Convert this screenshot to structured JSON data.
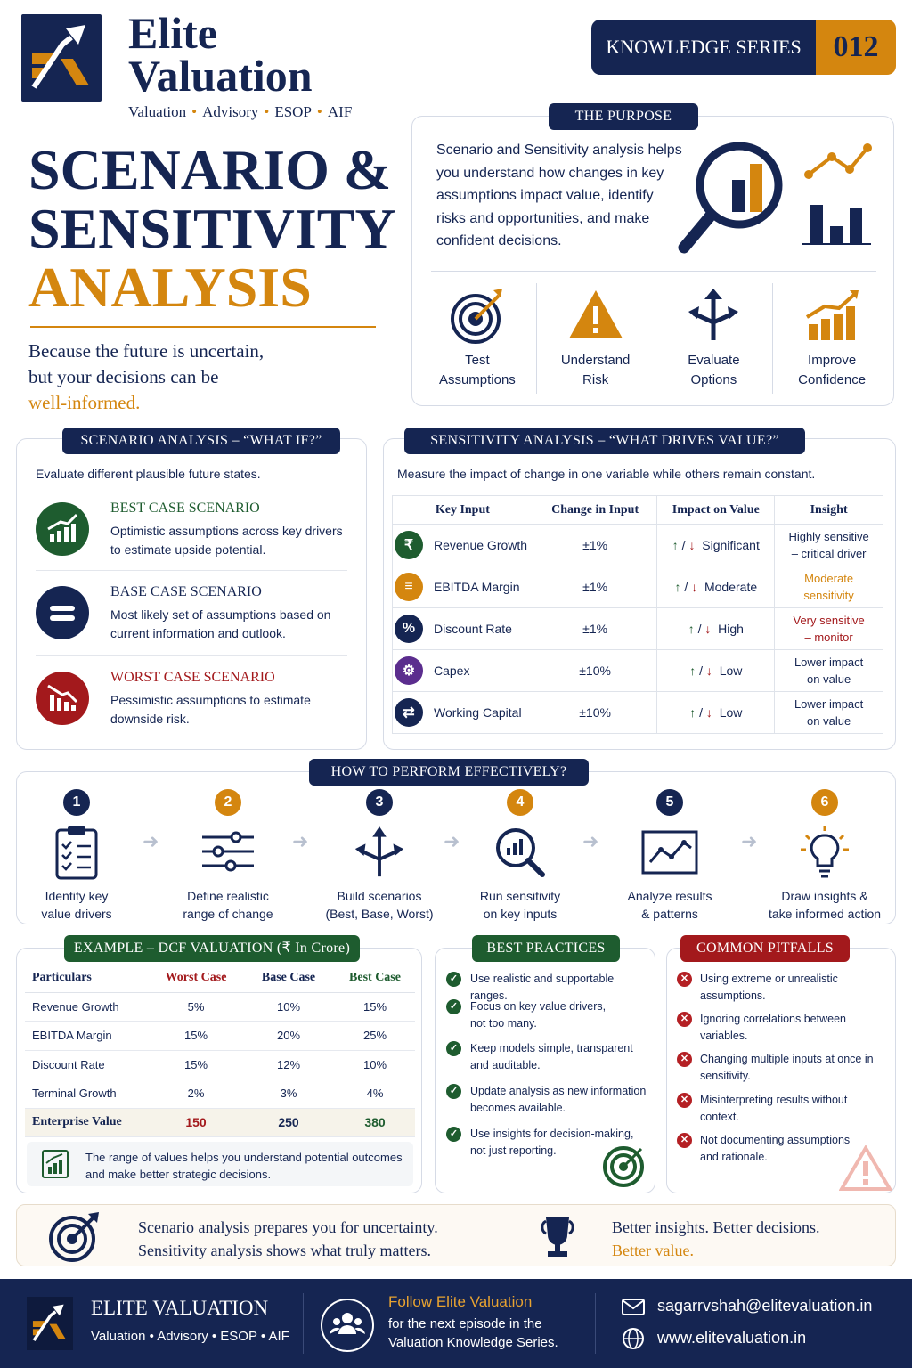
{
  "brand": {
    "name_line1": "Elite",
    "name_line2": "Valuation",
    "tagline_items": [
      "Valuation",
      "Advisory",
      "ESOP",
      "AIF"
    ]
  },
  "series": {
    "label": "KNOWLEDGE SERIES",
    "number": "012"
  },
  "title": {
    "line1": "SCENARIO &",
    "line2": "SENSITIVITY",
    "line3": "ANALYSIS",
    "tagline_line1": "Because the future is uncertain,",
    "tagline_line2": "but your decisions can be",
    "tagline_line3": "well-informed."
  },
  "purpose": {
    "heading": "THE PURPOSE",
    "text": "Scenario and Sensitivity analysis helps you understand how changes in key assumptions impact value, identify risks and opportunities, and make confident decisions.",
    "items": [
      {
        "line1": "Test",
        "line2": "Assumptions",
        "icon": "target-icon"
      },
      {
        "line1": "Understand",
        "line2": "Risk",
        "icon": "warning-icon"
      },
      {
        "line1": "Evaluate",
        "line2": "Options",
        "icon": "split-arrows-icon"
      },
      {
        "line1": "Improve",
        "line2": "Confidence",
        "icon": "growth-chart-icon"
      }
    ]
  },
  "scenario": {
    "heading": "SCENARIO ANALYSIS – “WHAT IF?”",
    "intro": "Evaluate different plausible future states.",
    "cases": [
      {
        "title": "BEST CASE SCENARIO",
        "desc": "Optimistic assumptions across key drivers to estimate upside potential."
      },
      {
        "title": "BASE CASE SCENARIO",
        "desc": "Most likely set of assumptions based on current information and outlook."
      },
      {
        "title": "WORST CASE SCENARIO",
        "desc": "Pessimistic assumptions to estimate downside risk."
      }
    ]
  },
  "sensitivity": {
    "heading": "SENSITIVITY ANALYSIS – “WHAT DRIVES VALUE?”",
    "intro": "Measure the impact of change in one variable while others remain constant.",
    "columns": [
      "Key Input",
      "Change in Input",
      "Impact on Value",
      "Insight"
    ],
    "arrows": "↑ / ↓",
    "rows": [
      {
        "input": "Revenue Growth",
        "change": "±1%",
        "impact": "Significant",
        "insight1": "Highly sensitive",
        "insight2": "– critical driver",
        "symbol": "₹"
      },
      {
        "input": "EBITDA Margin",
        "change": "±1%",
        "impact": "Moderate",
        "insight1": "Moderate",
        "insight2": "sensitivity",
        "symbol": "≡"
      },
      {
        "input": "Discount Rate",
        "change": "±1%",
        "impact": "High",
        "insight1": "Very sensitive",
        "insight2": "– monitor",
        "symbol": "%"
      },
      {
        "input": "Capex",
        "change": "±10%",
        "impact": "Low",
        "insight1": "Lower impact",
        "insight2": "on value",
        "symbol": "⚙"
      },
      {
        "input": "Working Capital",
        "change": "±10%",
        "impact": "Low",
        "insight1": "Lower impact",
        "insight2": "on value",
        "symbol": "⇄"
      }
    ]
  },
  "how": {
    "heading": "HOW TO PERFORM EFFECTIVELY?",
    "steps": [
      {
        "num": "1",
        "line1": "Identify key",
        "line2": "value drivers"
      },
      {
        "num": "2",
        "line1": "Define realistic",
        "line2": "range of change"
      },
      {
        "num": "3",
        "line1": "Build scenarios",
        "line2": "(Best, Base, Worst)"
      },
      {
        "num": "4",
        "line1": "Run sensitivity",
        "line2": "on key inputs"
      },
      {
        "num": "5",
        "line1": "Analyze results",
        "line2": "& patterns"
      },
      {
        "num": "6",
        "line1": "Draw insights &",
        "line2": "take informed action"
      }
    ]
  },
  "dcf": {
    "heading": "EXAMPLE – DCF VALUATION (₹ In Crore)",
    "columns": [
      "Particulars",
      "Worst Case",
      "Base Case",
      "Best Case"
    ],
    "rows": [
      [
        "Revenue Growth",
        "5%",
        "10%",
        "15%"
      ],
      [
        "EBITDA Margin",
        "15%",
        "20%",
        "25%"
      ],
      [
        "Discount Rate",
        "15%",
        "12%",
        "10%"
      ],
      [
        "Terminal Growth",
        "2%",
        "3%",
        "4%"
      ]
    ],
    "total": [
      "Enterprise Value",
      "150",
      "250",
      "380"
    ],
    "note": "The range of values helps you understand potential outcomes and make better strategic decisions."
  },
  "best_practices": {
    "heading": "BEST PRACTICES",
    "items": [
      "Use realistic and supportable ranges.",
      "Focus on key value drivers, not too many.",
      "Keep models simple, transparent and auditable.",
      "Update analysis as new information becomes available.",
      "Use insights for decision-making, not just reporting."
    ]
  },
  "pitfalls": {
    "heading": "COMMON PITFALLS",
    "items": [
      "Using extreme or unrealistic assumptions.",
      "Ignoring correlations between variables.",
      "Changing multiple inputs at once in sensitivity.",
      "Misinterpreting results without context.",
      "Not documenting assumptions and rationale."
    ]
  },
  "banner": {
    "line1": "Scenario analysis prepares you for uncertainty.",
    "line2": "Sensitivity analysis shows what truly matters.",
    "right1": "Better insights. Better decisions.",
    "right2": "Better value."
  },
  "footer": {
    "name": "ELITE VALUATION",
    "tagline": "Valuation • Advisory • ESOP • AIF",
    "follow_title": "Follow Elite Valuation",
    "follow_line1": "for the next episode in the",
    "follow_line2": "Valuation Knowledge Series.",
    "email": "sagarrvshah@elitevaluation.in",
    "website": "www.elitevaluation.in"
  },
  "colors": {
    "navy": "#152552",
    "gold": "#d4860f",
    "green": "#1e5c2f",
    "red": "#a3191c"
  }
}
